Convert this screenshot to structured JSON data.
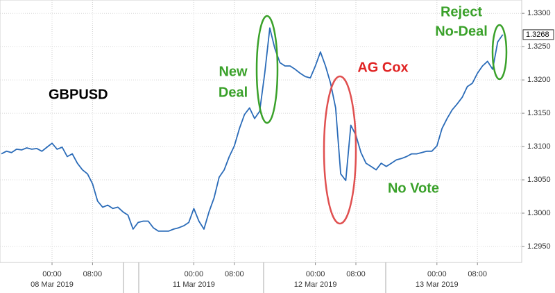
{
  "chart_data": {
    "type": "line",
    "color": "#2a6bb8",
    "categories": [
      null,
      null,
      null,
      null,
      null,
      null,
      null,
      null,
      null,
      null,
      "00:00",
      null,
      null,
      null,
      null,
      null,
      null,
      null,
      "08:00",
      null,
      null,
      null,
      null,
      null,
      null,
      null,
      null,
      null,
      null,
      null,
      null,
      null,
      null,
      null,
      null,
      null,
      null,
      null,
      "00:00",
      null,
      null,
      null,
      null,
      null,
      null,
      null,
      "08:00",
      null,
      null,
      null,
      null,
      null,
      null,
      null,
      null,
      null,
      null,
      null,
      null,
      null,
      null,
      null,
      "00:00",
      null,
      null,
      null,
      null,
      null,
      null,
      null,
      "08:00",
      null,
      null,
      null,
      null,
      null,
      null,
      null,
      null,
      null,
      null,
      null,
      null,
      null,
      null,
      null,
      "00:00",
      null,
      null,
      null,
      null,
      null,
      null,
      null,
      "08:00",
      null,
      null,
      null,
      null,
      null
    ],
    "date_labels": [
      null,
      null,
      null,
      null,
      null,
      null,
      null,
      null,
      null,
      null,
      "08 Mar 2019",
      null,
      null,
      null,
      null,
      null,
      null,
      null,
      null,
      null,
      null,
      null,
      null,
      null,
      null,
      null,
      null,
      null,
      null,
      null,
      null,
      null,
      null,
      null,
      null,
      null,
      null,
      null,
      "11 Mar 2019",
      null,
      null,
      null,
      null,
      null,
      null,
      null,
      null,
      null,
      null,
      null,
      null,
      null,
      null,
      null,
      null,
      null,
      null,
      null,
      null,
      null,
      null,
      null,
      "12 Mar 2019",
      null,
      null,
      null,
      null,
      null,
      null,
      null,
      null,
      null,
      null,
      null,
      null,
      null,
      null,
      null,
      null,
      null,
      null,
      null,
      null,
      null,
      null,
      null,
      "13 Mar 2019",
      null,
      null,
      null,
      null,
      null,
      null,
      null,
      null,
      null,
      null,
      null,
      null,
      null
    ],
    "values": [
      1.3089,
      1.3093,
      1.3091,
      1.3096,
      1.3095,
      1.3098,
      1.3096,
      1.3097,
      1.3093,
      1.3099,
      1.3105,
      1.3096,
      1.3099,
      1.3085,
      1.3089,
      1.3075,
      1.3065,
      1.3059,
      1.3044,
      1.3018,
      1.3009,
      1.3012,
      1.3007,
      1.3009,
      1.3002,
      1.2997,
      1.2976,
      1.2986,
      1.2988,
      1.2988,
      1.2978,
      1.2973,
      1.2973,
      1.2973,
      1.2976,
      1.2978,
      1.2981,
      1.2986,
      1.3007,
      1.2988,
      1.2976,
      1.3002,
      1.3023,
      1.3054,
      1.3065,
      1.3085,
      1.3101,
      1.3127,
      1.3148,
      1.3158,
      1.3142,
      1.3153,
      1.321,
      1.3278,
      1.3247,
      1.3226,
      1.3221,
      1.3221,
      1.3216,
      1.321,
      1.3205,
      1.3203,
      1.3221,
      1.3242,
      1.3221,
      1.3195,
      1.3158,
      1.3059,
      1.3049,
      1.3132,
      1.3117,
      1.3091,
      1.3075,
      1.307,
      1.3065,
      1.3075,
      1.307,
      1.3075,
      1.308,
      1.3082,
      1.3085,
      1.3089,
      1.3089,
      1.3091,
      1.3093,
      1.3093,
      1.3101,
      1.3127,
      1.3142,
      1.3155,
      1.3164,
      1.3174,
      1.319,
      1.3195,
      1.321,
      1.3221,
      1.3228,
      1.3216,
      1.3257,
      1.3268
    ],
    "last_price": 1.3268,
    "ylim": [
      1.2926,
      1.332
    ],
    "yticks": [
      {
        "value": 1.295,
        "label": "1.2950"
      },
      {
        "value": 1.3,
        "label": "1.3000"
      },
      {
        "value": 1.305,
        "label": "1.3050"
      },
      {
        "value": 1.31,
        "label": "1.3100"
      },
      {
        "value": 1.315,
        "label": "1.3150"
      },
      {
        "value": 1.32,
        "label": "1.3200"
      },
      {
        "value": 1.325,
        "label": "1.3250"
      },
      {
        "value": 1.33,
        "label": "1.3300"
      }
    ],
    "grid": true,
    "annotations": {
      "symbol": "GBPUSD",
      "new_deal": [
        "New",
        "Deal"
      ],
      "ag_cox": "AG Cox",
      "no_vote": "No Vote",
      "reject": [
        "Reject",
        "No-Deal"
      ]
    }
  }
}
